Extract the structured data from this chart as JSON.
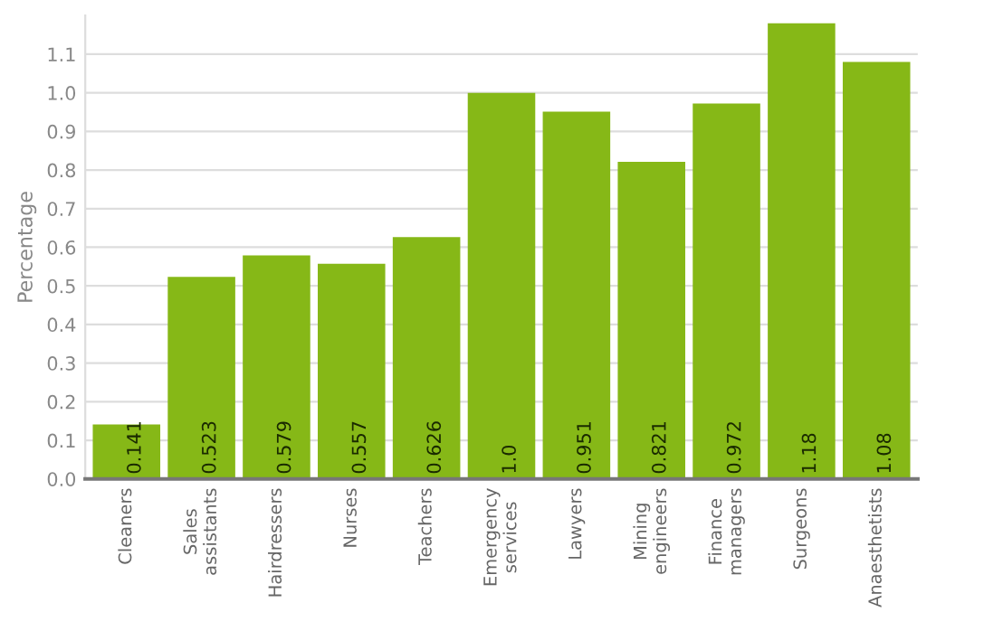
{
  "chart_data": {
    "type": "bar",
    "ylabel": "Percentage",
    "categories": [
      "Cleaners",
      "Sales assistants",
      "Hairdressers",
      "Nurses",
      "Teachers",
      "Emergency services",
      "Lawyers",
      "Mining engineers",
      "Finance managers",
      "Surgeons",
      "Anaesthetists"
    ],
    "values": [
      0.141,
      0.523,
      0.579,
      0.557,
      0.626,
      1.0,
      0.951,
      0.821,
      0.972,
      1.18,
      1.08
    ],
    "color": "#86b817",
    "ylim": [
      0,
      1.2
    ],
    "yticks": [
      {
        "value": 0,
        "label": "0.0"
      },
      0.1,
      0.2,
      0.3,
      0.4,
      0.5,
      0.6,
      0.7,
      0.8,
      0.9,
      {
        "value": 1,
        "label": "1.0"
      },
      1.1
    ],
    "value_labels": [
      "0.141",
      "0.523",
      "0.579",
      "0.557",
      "0.626",
      "1.0",
      "0.951",
      "0.821",
      "0.972",
      "1.18",
      "1.08"
    ],
    "grid": "y"
  }
}
